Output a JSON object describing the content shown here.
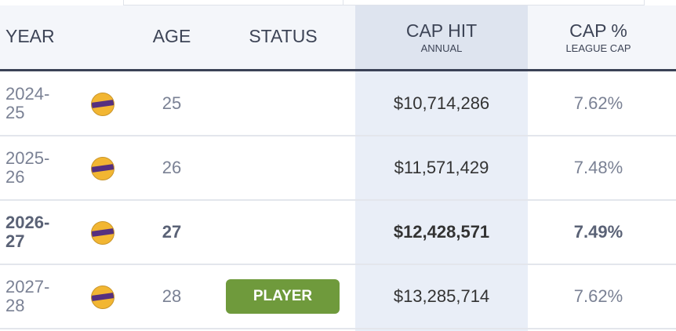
{
  "header": {
    "year": "YEAR",
    "age": "AGE",
    "status": "STATUS",
    "cap_hit": {
      "title": "CAP HIT",
      "sub": "ANNUAL"
    },
    "cap_pct": {
      "title": "CAP %",
      "sub": "LEAGUE CAP"
    }
  },
  "table": {
    "rows": [
      {
        "year": "2024-25",
        "age": "25",
        "cap_hit": "$10,714,286",
        "cap_pct": "7.62%"
      },
      {
        "year": "2025-26",
        "age": "26",
        "cap_hit": "$11,571,429",
        "cap_pct": "7.48%"
      },
      {
        "year": "2026-27",
        "age": "27",
        "cap_hit": "$12,428,571",
        "cap_pct": "7.49%",
        "bold": true
      },
      {
        "year": "2027-28",
        "age": "28",
        "status": "PLAYER",
        "cap_hit": "$13,285,714",
        "cap_pct": "7.62%"
      }
    ]
  }
}
